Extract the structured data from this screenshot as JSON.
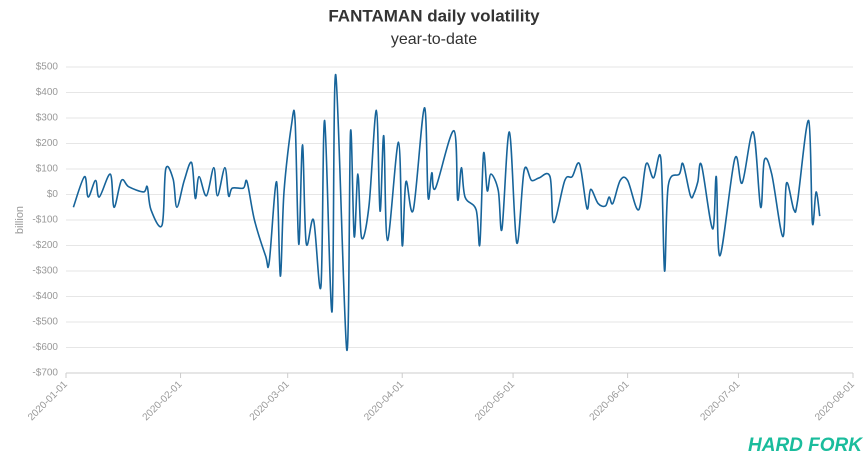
{
  "chart_data": {
    "type": "line",
    "title": "FANTAMAN daily volatility",
    "subtitle": "year-to-date",
    "y_label": "billion",
    "logo": "HARD FORK",
    "grid": true,
    "ylim": [
      -700,
      500
    ],
    "yticks": [
      {
        "value": -700,
        "label": "-$700"
      },
      {
        "value": -600,
        "label": "-$600"
      },
      {
        "value": -500,
        "label": "-$500"
      },
      {
        "value": -400,
        "label": "-$400"
      },
      {
        "value": -300,
        "label": "-$300"
      },
      {
        "value": -200,
        "label": "-$200"
      },
      {
        "value": -100,
        "label": "-$100"
      },
      {
        "value": 0,
        "label": "$0"
      },
      {
        "value": 100,
        "label": "$100"
      },
      {
        "value": 200,
        "label": "$200"
      },
      {
        "value": 300,
        "label": "$300"
      },
      {
        "value": 400,
        "label": "$400"
      },
      {
        "value": 500,
        "label": "$500"
      }
    ],
    "xlim": [
      "2020-01-01",
      "2020-08-01"
    ],
    "xticks": [
      "2020-01-01",
      "2020-02-01",
      "2020-03-01",
      "2020-04-01",
      "2020-05-01",
      "2020-06-01",
      "2020-07-01",
      "2020-08-01"
    ],
    "x": [
      "2020-01-03",
      "2020-01-06",
      "2020-01-07",
      "2020-01-09",
      "2020-01-10",
      "2020-01-13",
      "2020-01-14",
      "2020-01-16",
      "2020-01-18",
      "2020-01-22",
      "2020-01-23",
      "2020-01-24",
      "2020-01-27",
      "2020-01-28",
      "2020-01-30",
      "2020-01-31",
      "2020-02-02",
      "2020-02-04",
      "2020-02-05",
      "2020-02-06",
      "2020-02-08",
      "2020-02-10",
      "2020-02-11",
      "2020-02-13",
      "2020-02-14",
      "2020-02-15",
      "2020-02-18",
      "2020-02-19",
      "2020-02-21",
      "2020-02-24",
      "2020-02-25",
      "2020-02-27",
      "2020-02-28",
      "2020-02-29",
      "2020-03-02",
      "2020-03-03",
      "2020-03-04",
      "2020-03-05",
      "2020-03-06",
      "2020-03-08",
      "2020-03-10",
      "2020-03-11",
      "2020-03-13",
      "2020-03-14",
      "2020-03-17",
      "2020-03-18",
      "2020-03-19",
      "2020-03-20",
      "2020-03-21",
      "2020-03-23",
      "2020-03-25",
      "2020-03-26",
      "2020-03-27",
      "2020-03-28",
      "2020-03-31",
      "2020-04-01",
      "2020-04-02",
      "2020-04-04",
      "2020-04-07",
      "2020-04-08",
      "2020-04-09",
      "2020-04-10",
      "2020-04-15",
      "2020-04-16",
      "2020-04-17",
      "2020-04-18",
      "2020-04-21",
      "2020-04-22",
      "2020-04-23",
      "2020-04-24",
      "2020-04-25",
      "2020-04-27",
      "2020-04-28",
      "2020-04-30",
      "2020-05-02",
      "2020-05-04",
      "2020-05-06",
      "2020-05-08",
      "2020-05-11",
      "2020-05-12",
      "2020-05-15",
      "2020-05-17",
      "2020-05-19",
      "2020-05-21",
      "2020-05-22",
      "2020-05-24",
      "2020-05-26",
      "2020-05-27",
      "2020-05-28",
      "2020-05-30",
      "2020-06-01",
      "2020-06-04",
      "2020-06-06",
      "2020-06-08",
      "2020-06-10",
      "2020-06-11",
      "2020-06-12",
      "2020-06-15",
      "2020-06-16",
      "2020-06-18",
      "2020-06-19",
      "2020-06-20",
      "2020-06-21",
      "2020-06-24",
      "2020-06-25",
      "2020-06-26",
      "2020-06-30",
      "2020-07-02",
      "2020-07-05",
      "2020-07-07",
      "2020-07-08",
      "2020-07-10",
      "2020-07-13",
      "2020-07-14",
      "2020-07-16",
      "2020-07-17",
      "2020-07-20",
      "2020-07-21",
      "2020-07-22",
      "2020-07-23"
    ],
    "series": [
      {
        "name": "volatility",
        "color": "#17649a",
        "values": [
          -50,
          70,
          -10,
          55,
          -10,
          80,
          -50,
          55,
          30,
          10,
          30,
          -60,
          -120,
          100,
          60,
          -50,
          55,
          125,
          -15,
          70,
          -5,
          105,
          -5,
          105,
          -5,
          25,
          25,
          50,
          -100,
          -240,
          -265,
          50,
          -320,
          10,
          270,
          290,
          -195,
          195,
          -190,
          -100,
          -360,
          290,
          -460,
          470,
          -610,
          245,
          -165,
          80,
          -170,
          -45,
          330,
          -65,
          230,
          -180,
          205,
          -200,
          50,
          -60,
          340,
          -10,
          85,
          25,
          250,
          -20,
          105,
          -10,
          -60,
          -195,
          160,
          15,
          80,
          15,
          -135,
          245,
          -190,
          95,
          55,
          65,
          70,
          -110,
          55,
          70,
          120,
          -55,
          20,
          -35,
          -45,
          -10,
          -35,
          55,
          55,
          -60,
          120,
          65,
          140,
          -300,
          35,
          80,
          120,
          -5,
          5,
          50,
          115,
          -135,
          70,
          -240,
          140,
          45,
          245,
          -50,
          135,
          80,
          -165,
          45,
          -60,
          -25,
          290,
          -110,
          10,
          -85
        ]
      }
    ]
  }
}
